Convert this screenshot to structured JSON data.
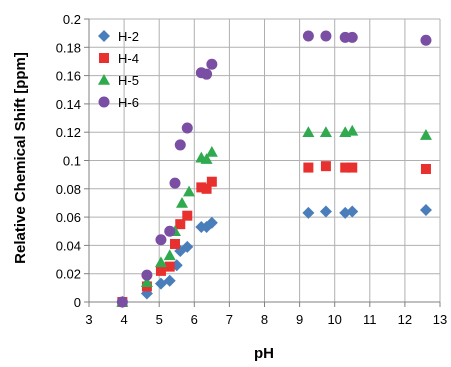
{
  "chart_data": {
    "type": "scatter",
    "xlabel": "pH",
    "ylabel": "Relative Chemical Shift [ppm]",
    "xlim": [
      3,
      13
    ],
    "ylim": [
      0,
      0.2
    ],
    "xticks": [
      "3",
      "4",
      "5",
      "6",
      "7",
      "8",
      "9",
      "10",
      "11",
      "12",
      "13"
    ],
    "yticks": [
      "0",
      "0.02",
      "0.04",
      "0.06",
      "0.08",
      "0.1",
      "0.12",
      "0.14",
      "0.16",
      "0.18",
      "0.2"
    ],
    "grid": true,
    "legend_position": "top-left",
    "series": [
      {
        "name": "H-2",
        "marker": "diamond",
        "color": "#4a7ebb",
        "points": [
          [
            3.95,
            0.0
          ],
          [
            4.65,
            0.006
          ],
          [
            5.05,
            0.013
          ],
          [
            5.3,
            0.015
          ],
          [
            5.5,
            0.026
          ],
          [
            5.6,
            0.036
          ],
          [
            5.8,
            0.039
          ],
          [
            6.2,
            0.053
          ],
          [
            6.35,
            0.053
          ],
          [
            6.5,
            0.056
          ],
          [
            9.25,
            0.063
          ],
          [
            9.75,
            0.064
          ],
          [
            10.3,
            0.063
          ],
          [
            10.5,
            0.064
          ],
          [
            12.6,
            0.065
          ]
        ]
      },
      {
        "name": "H-4",
        "marker": "square",
        "color": "#e8312f",
        "points": [
          [
            3.95,
            0.0
          ],
          [
            4.65,
            0.011
          ],
          [
            5.05,
            0.022
          ],
          [
            5.3,
            0.025
          ],
          [
            5.45,
            0.041
          ],
          [
            5.6,
            0.055
          ],
          [
            5.8,
            0.061
          ],
          [
            6.2,
            0.081
          ],
          [
            6.35,
            0.08
          ],
          [
            6.5,
            0.085
          ],
          [
            9.25,
            0.095
          ],
          [
            9.75,
            0.096
          ],
          [
            10.3,
            0.095
          ],
          [
            10.5,
            0.095
          ],
          [
            12.6,
            0.094
          ]
        ]
      },
      {
        "name": "H-5",
        "marker": "triangle",
        "color": "#2faa4f",
        "points": [
          [
            3.95,
            0.0
          ],
          [
            4.65,
            0.014
          ],
          [
            5.05,
            0.028
          ],
          [
            5.3,
            0.033
          ],
          [
            5.45,
            0.05
          ],
          [
            5.65,
            0.07
          ],
          [
            5.85,
            0.078
          ],
          [
            6.2,
            0.102
          ],
          [
            6.35,
            0.101
          ],
          [
            6.5,
            0.106
          ],
          [
            9.25,
            0.12
          ],
          [
            9.75,
            0.12
          ],
          [
            10.3,
            0.12
          ],
          [
            10.5,
            0.121
          ],
          [
            12.6,
            0.118
          ]
        ]
      },
      {
        "name": "H-6",
        "marker": "circle",
        "color": "#7a4ea3",
        "points": [
          [
            3.95,
            0.0
          ],
          [
            4.65,
            0.019
          ],
          [
            5.05,
            0.044
          ],
          [
            5.3,
            0.05
          ],
          [
            5.45,
            0.084
          ],
          [
            5.6,
            0.111
          ],
          [
            5.8,
            0.123
          ],
          [
            6.2,
            0.162
          ],
          [
            6.35,
            0.161
          ],
          [
            6.5,
            0.168
          ],
          [
            9.25,
            0.188
          ],
          [
            9.75,
            0.188
          ],
          [
            10.3,
            0.187
          ],
          [
            10.5,
            0.187
          ],
          [
            12.6,
            0.185
          ]
        ]
      }
    ]
  }
}
